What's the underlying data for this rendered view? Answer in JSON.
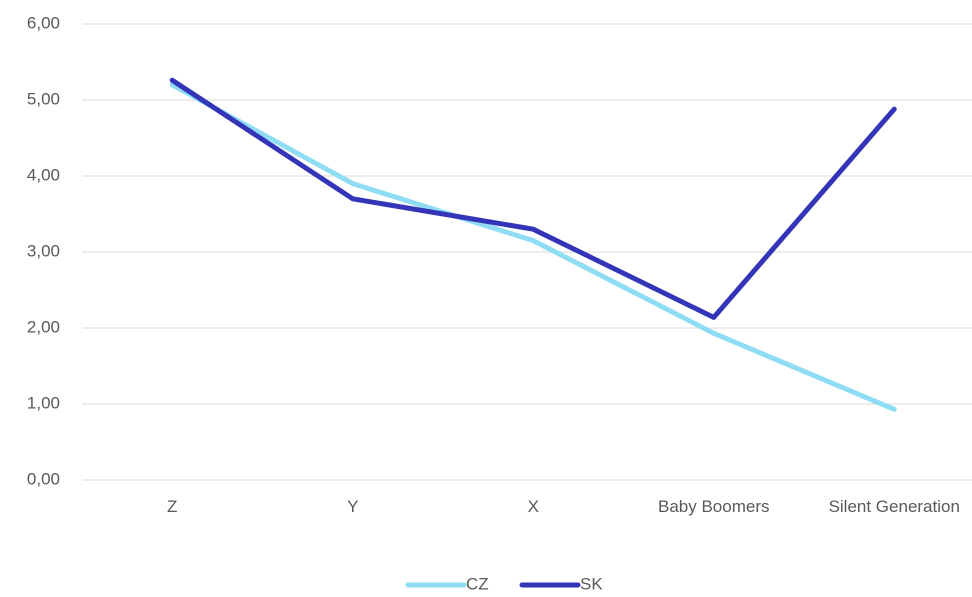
{
  "chart_data": {
    "type": "line",
    "categories": [
      "Z",
      "Y",
      "X",
      "Baby Boomers",
      "Silent Generation"
    ],
    "series": [
      {
        "name": "CZ",
        "color": "#8fdcf5",
        "values": [
          5.2,
          3.9,
          3.15,
          1.93,
          0.93
        ]
      },
      {
        "name": "SK",
        "color": "#3434b8",
        "values": [
          5.26,
          3.7,
          3.3,
          2.14,
          4.88
        ]
      }
    ],
    "ylim": [
      0,
      6
    ],
    "yticks": [
      {
        "value": 0,
        "label": "0,00"
      },
      {
        "value": 1,
        "label": "1,00"
      },
      {
        "value": 2,
        "label": "2,00"
      },
      {
        "value": 3,
        "label": "3,00"
      },
      {
        "value": 4,
        "label": "4,00"
      },
      {
        "value": 5,
        "label": "5,00"
      },
      {
        "value": 6,
        "label": "6,00"
      }
    ],
    "grid": true,
    "legend": "bottom"
  }
}
